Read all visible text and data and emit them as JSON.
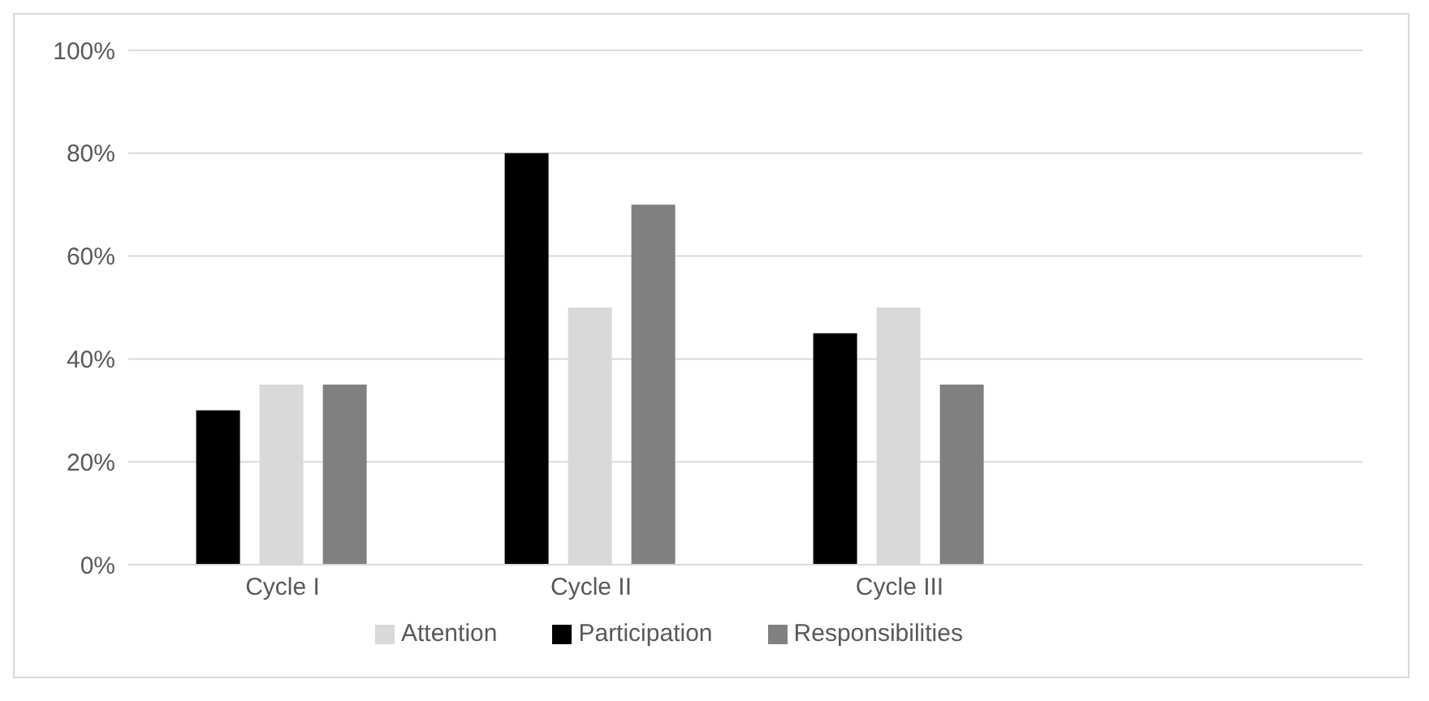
{
  "chart_data": {
    "type": "bar",
    "categories": [
      "Cycle I",
      "Cycle II",
      "Cycle III",
      null
    ],
    "series": [
      {
        "name": "Participation",
        "color": "#000000",
        "values": [
          30,
          80,
          45,
          null
        ]
      },
      {
        "name": "Attention",
        "color": "#d9d9d9",
        "values": [
          35,
          50,
          50,
          null
        ]
      },
      {
        "name": "Responsibilities",
        "color": "#808080",
        "values": [
          35,
          70,
          35,
          null
        ]
      }
    ],
    "ylim": [
      0,
      100
    ],
    "yticks": [
      {
        "value": 0,
        "label": "0%"
      },
      {
        "value": 20,
        "label": "20%"
      },
      {
        "value": 40,
        "label": "40%"
      },
      {
        "value": 60,
        "label": "60%"
      },
      {
        "value": 80,
        "label": "80%"
      },
      {
        "value": 100,
        "label": "100%"
      }
    ],
    "grid": "y",
    "legend": "bottom"
  }
}
